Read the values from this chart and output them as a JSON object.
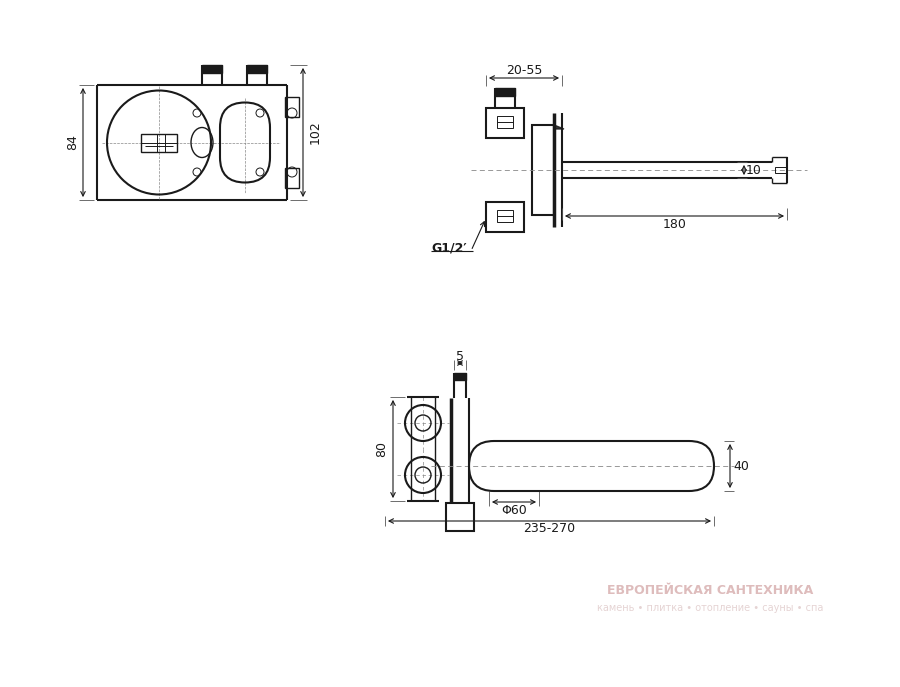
{
  "bg_color": "#ffffff",
  "lc": "#1a1a1a",
  "dc": "#1a1a1a",
  "figsize": [
    9.0,
    6.87
  ],
  "dpi": 100,
  "dims": {
    "v1_84": "84",
    "v1_102": "102",
    "v2_2055": "20-55",
    "v2_10": "10",
    "v2_180": "180",
    "v2_g12": "G1/2′",
    "v3_5": "5",
    "v3_80": "80",
    "v3_40": "40",
    "v3_phi60": "Φ60",
    "v3_235270": "235-270"
  },
  "wm_main": "ЕВРОПЕЙСКАЯ САНТЕХНИКА",
  "wm_sub": "камень • плитка • отопление • сауны • спа"
}
